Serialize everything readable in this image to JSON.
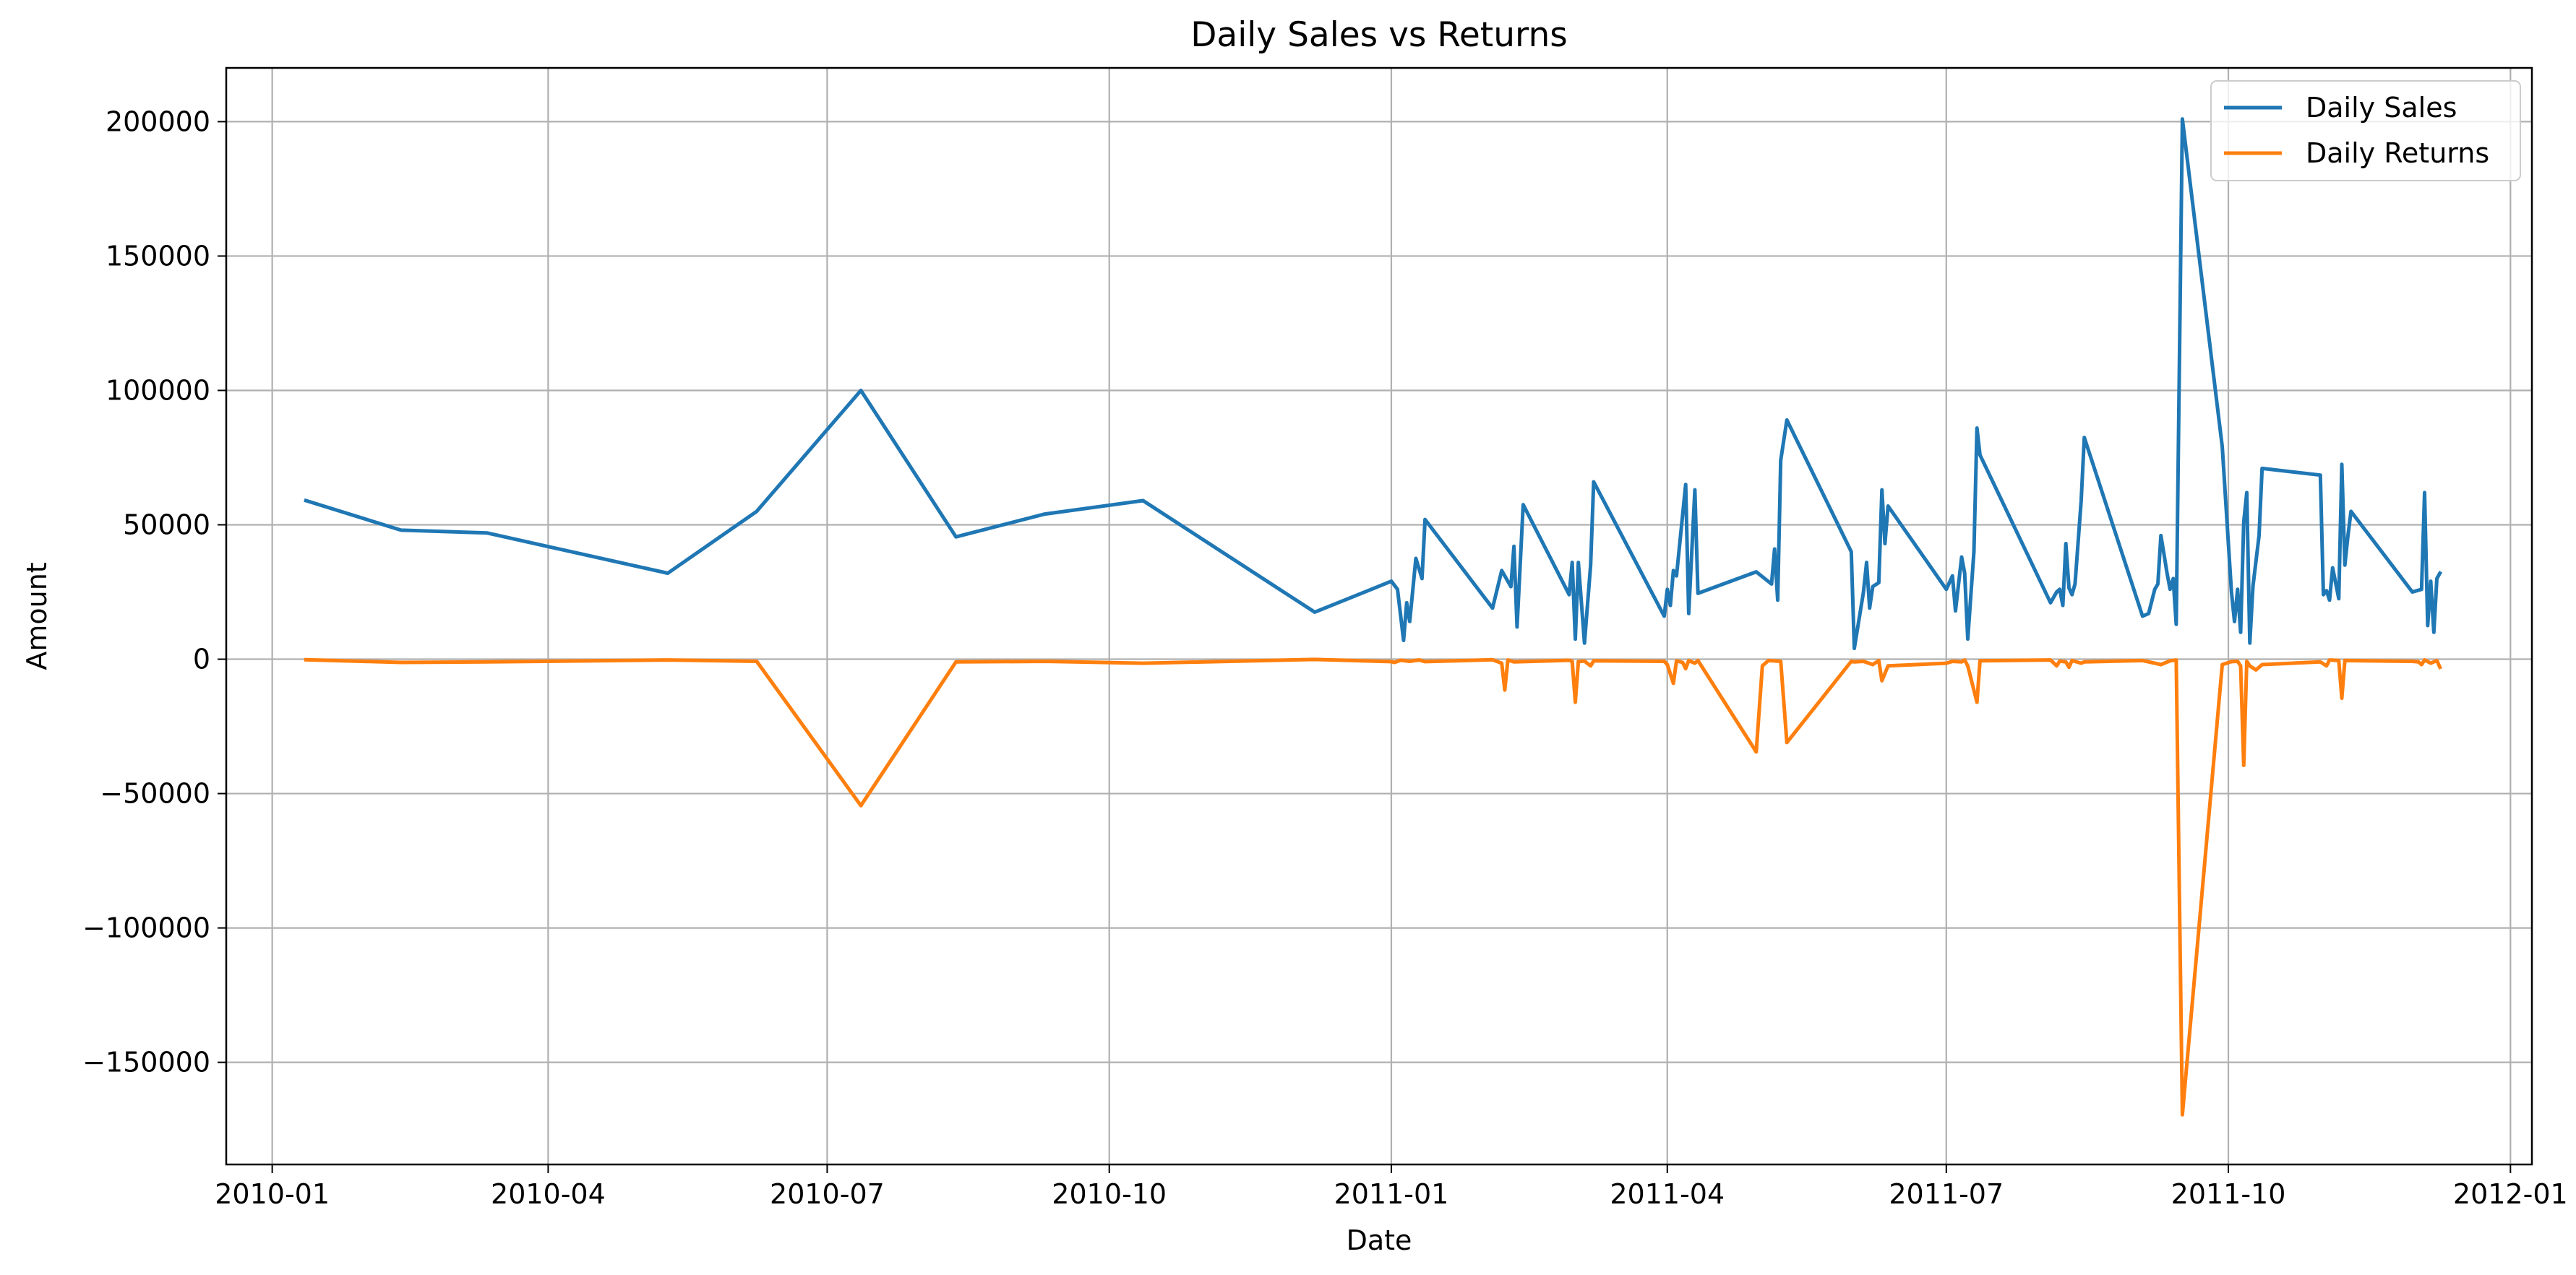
{
  "chart_data": {
    "type": "line",
    "title": "Daily Sales vs Returns",
    "xlabel": "Date",
    "ylabel": "Amount",
    "x_axis": "date",
    "xlim": [
      "2009-12-17",
      "2012-01-08"
    ],
    "ylim": [
      -188000,
      220000
    ],
    "xticks": [
      {
        "date": "2010-01-01",
        "label": "2010-01"
      },
      {
        "date": "2010-04-01",
        "label": "2010-04"
      },
      {
        "date": "2010-07-01",
        "label": "2010-07"
      },
      {
        "date": "2010-10-01",
        "label": "2010-10"
      },
      {
        "date": "2011-01-01",
        "label": "2011-01"
      },
      {
        "date": "2011-04-01",
        "label": "2011-04"
      },
      {
        "date": "2011-07-01",
        "label": "2011-07"
      },
      {
        "date": "2011-10-01",
        "label": "2011-10"
      },
      {
        "date": "2012-01-01",
        "label": "2012-01"
      }
    ],
    "yticks": [
      {
        "value": 200000,
        "label": "200000"
      },
      {
        "value": 150000,
        "label": "150000"
      },
      {
        "value": 100000,
        "label": "100000"
      },
      {
        "value": 50000,
        "label": "50000"
      },
      {
        "value": 0,
        "label": "0"
      },
      {
        "value": -50000,
        "label": "−50000"
      },
      {
        "value": -100000,
        "label": "−100000"
      },
      {
        "value": -150000,
        "label": "−150000"
      }
    ],
    "grid": true,
    "legend_position": "top-right",
    "series": [
      {
        "name": "Daily Sales",
        "color": "#1f77b4",
        "points": [
          [
            "2010-01-12",
            59000
          ],
          [
            "2010-02-12",
            48000
          ],
          [
            "2010-03-12",
            47000
          ],
          [
            "2010-05-10",
            32000
          ],
          [
            "2010-06-08",
            55000
          ],
          [
            "2010-07-12",
            100000
          ],
          [
            "2010-08-12",
            45500
          ],
          [
            "2010-09-10",
            54000
          ],
          [
            "2010-10-12",
            59000
          ],
          [
            "2010-12-07",
            17500
          ],
          [
            "2011-01-01",
            29000
          ],
          [
            "2011-01-03",
            26000
          ],
          [
            "2011-01-05",
            7000
          ],
          [
            "2011-01-06",
            21000
          ],
          [
            "2011-01-07",
            14000
          ],
          [
            "2011-01-09",
            37500
          ],
          [
            "2011-01-11",
            30000
          ],
          [
            "2011-01-12",
            52000
          ],
          [
            "2011-02-03",
            19000
          ],
          [
            "2011-02-06",
            33000
          ],
          [
            "2011-02-09",
            27000
          ],
          [
            "2011-02-10",
            42000
          ],
          [
            "2011-02-11",
            12000
          ],
          [
            "2011-02-13",
            57500
          ],
          [
            "2011-02-28",
            24000
          ],
          [
            "2011-03-01",
            36000
          ],
          [
            "2011-03-02",
            7500
          ],
          [
            "2011-03-03",
            36000
          ],
          [
            "2011-03-05",
            6000
          ],
          [
            "2011-03-07",
            35000
          ],
          [
            "2011-03-08",
            66000
          ],
          [
            "2011-03-31",
            16000
          ],
          [
            "2011-04-01",
            26000
          ],
          [
            "2011-04-02",
            20000
          ],
          [
            "2011-04-03",
            33000
          ],
          [
            "2011-04-04",
            31000
          ],
          [
            "2011-04-07",
            65000
          ],
          [
            "2011-04-08",
            17000
          ],
          [
            "2011-04-10",
            63000
          ],
          [
            "2011-04-11",
            24500
          ],
          [
            "2011-04-30",
            32500
          ],
          [
            "2011-05-05",
            28000
          ],
          [
            "2011-05-06",
            41000
          ],
          [
            "2011-05-07",
            22000
          ],
          [
            "2011-05-08",
            74000
          ],
          [
            "2011-05-10",
            89000
          ],
          [
            "2011-05-31",
            40000
          ],
          [
            "2011-06-01",
            4000
          ],
          [
            "2011-06-04",
            25000
          ],
          [
            "2011-06-05",
            36000
          ],
          [
            "2011-06-06",
            19000
          ],
          [
            "2011-06-07",
            27000
          ],
          [
            "2011-06-09",
            28500
          ],
          [
            "2011-06-10",
            63000
          ],
          [
            "2011-06-11",
            43000
          ],
          [
            "2011-06-12",
            57000
          ],
          [
            "2011-07-01",
            26000
          ],
          [
            "2011-07-03",
            31000
          ],
          [
            "2011-07-04",
            18000
          ],
          [
            "2011-07-06",
            38000
          ],
          [
            "2011-07-07",
            32000
          ],
          [
            "2011-07-08",
            7500
          ],
          [
            "2011-07-10",
            40000
          ],
          [
            "2011-07-11",
            86000
          ],
          [
            "2011-07-12",
            76000
          ],
          [
            "2011-08-04",
            21000
          ],
          [
            "2011-08-06",
            25000
          ],
          [
            "2011-08-07",
            26000
          ],
          [
            "2011-08-08",
            20000
          ],
          [
            "2011-08-09",
            43000
          ],
          [
            "2011-08-10",
            26500
          ],
          [
            "2011-08-11",
            24000
          ],
          [
            "2011-08-12",
            28000
          ],
          [
            "2011-08-14",
            59000
          ],
          [
            "2011-08-15",
            82500
          ],
          [
            "2011-09-03",
            16000
          ],
          [
            "2011-09-05",
            17000
          ],
          [
            "2011-09-07",
            26000
          ],
          [
            "2011-09-08",
            28000
          ],
          [
            "2011-09-09",
            46000
          ],
          [
            "2011-09-10",
            39000
          ],
          [
            "2011-09-11",
            32000
          ],
          [
            "2011-09-12",
            26000
          ],
          [
            "2011-09-13",
            30000
          ],
          [
            "2011-09-14",
            13000
          ],
          [
            "2011-09-16",
            201000
          ],
          [
            "2011-09-29",
            79000
          ],
          [
            "2011-10-02",
            25000
          ],
          [
            "2011-10-03",
            14000
          ],
          [
            "2011-10-04",
            26000
          ],
          [
            "2011-10-05",
            10000
          ],
          [
            "2011-10-06",
            51000
          ],
          [
            "2011-10-07",
            62000
          ],
          [
            "2011-10-08",
            6000
          ],
          [
            "2011-10-09",
            27000
          ],
          [
            "2011-10-11",
            46000
          ],
          [
            "2011-10-12",
            71000
          ],
          [
            "2011-10-31",
            68500
          ],
          [
            "2011-11-01",
            24000
          ],
          [
            "2011-11-02",
            25500
          ],
          [
            "2011-11-03",
            22000
          ],
          [
            "2011-11-04",
            34000
          ],
          [
            "2011-11-06",
            22500
          ],
          [
            "2011-11-07",
            72500
          ],
          [
            "2011-11-08",
            35000
          ],
          [
            "2011-11-09",
            46000
          ],
          [
            "2011-11-10",
            55000
          ],
          [
            "2011-11-30",
            25000
          ],
          [
            "2011-12-03",
            26000
          ],
          [
            "2011-12-04",
            62000
          ],
          [
            "2011-12-05",
            12500
          ],
          [
            "2011-12-06",
            29000
          ],
          [
            "2011-12-07",
            10000
          ],
          [
            "2011-12-08",
            30000
          ],
          [
            "2011-12-09",
            32000
          ]
        ]
      },
      {
        "name": "Daily Returns",
        "color": "#ff7f0e",
        "points": [
          [
            "2010-01-12",
            -200
          ],
          [
            "2010-02-12",
            -1200
          ],
          [
            "2010-03-12",
            -1000
          ],
          [
            "2010-05-10",
            -300
          ],
          [
            "2010-06-08",
            -800
          ],
          [
            "2010-07-12",
            -54500
          ],
          [
            "2010-08-12",
            -1000
          ],
          [
            "2010-09-10",
            -800
          ],
          [
            "2010-10-12",
            -1500
          ],
          [
            "2010-12-07",
            -100
          ],
          [
            "2011-01-01",
            -900
          ],
          [
            "2011-01-02",
            -1200
          ],
          [
            "2011-01-04",
            -400
          ],
          [
            "2011-01-07",
            -800
          ],
          [
            "2011-01-10",
            -300
          ],
          [
            "2011-01-12",
            -900
          ],
          [
            "2011-02-03",
            -200
          ],
          [
            "2011-02-06",
            -1500
          ],
          [
            "2011-02-07",
            -11500
          ],
          [
            "2011-02-08",
            -300
          ],
          [
            "2011-02-10",
            -1000
          ],
          [
            "2011-02-28",
            -400
          ],
          [
            "2011-03-01",
            -800
          ],
          [
            "2011-03-02",
            -16000
          ],
          [
            "2011-03-03",
            -900
          ],
          [
            "2011-03-05",
            -700
          ],
          [
            "2011-03-07",
            -2500
          ],
          [
            "2011-03-08",
            -600
          ],
          [
            "2011-03-31",
            -800
          ],
          [
            "2011-04-01",
            -2000
          ],
          [
            "2011-04-03",
            -9000
          ],
          [
            "2011-04-04",
            -600
          ],
          [
            "2011-04-06",
            -1200
          ],
          [
            "2011-04-07",
            -3500
          ],
          [
            "2011-04-08",
            -500
          ],
          [
            "2011-04-10",
            -1500
          ],
          [
            "2011-04-11",
            -500
          ],
          [
            "2011-04-30",
            -34500
          ],
          [
            "2011-05-02",
            -2500
          ],
          [
            "2011-05-04",
            -500
          ],
          [
            "2011-05-08",
            -800
          ],
          [
            "2011-05-10",
            -31000
          ],
          [
            "2011-05-31",
            -800
          ],
          [
            "2011-06-01",
            -1000
          ],
          [
            "2011-06-04",
            -800
          ],
          [
            "2011-06-07",
            -2000
          ],
          [
            "2011-06-09",
            -500
          ],
          [
            "2011-06-10",
            -8000
          ],
          [
            "2011-06-12",
            -2500
          ],
          [
            "2011-07-01",
            -1500
          ],
          [
            "2011-07-03",
            -800
          ],
          [
            "2011-07-06",
            -1000
          ],
          [
            "2011-07-07",
            -300
          ],
          [
            "2011-07-08",
            -2500
          ],
          [
            "2011-07-11",
            -16000
          ],
          [
            "2011-07-12",
            -600
          ],
          [
            "2011-08-04",
            -300
          ],
          [
            "2011-08-06",
            -2500
          ],
          [
            "2011-08-07",
            -700
          ],
          [
            "2011-08-09",
            -1000
          ],
          [
            "2011-08-10",
            -3000
          ],
          [
            "2011-08-11",
            -500
          ],
          [
            "2011-08-14",
            -1500
          ],
          [
            "2011-08-15",
            -1000
          ],
          [
            "2011-09-03",
            -500
          ],
          [
            "2011-09-07",
            -1500
          ],
          [
            "2011-09-09",
            -2000
          ],
          [
            "2011-09-12",
            -600
          ],
          [
            "2011-09-14",
            -300
          ],
          [
            "2011-09-16",
            -169500
          ],
          [
            "2011-09-29",
            -2000
          ],
          [
            "2011-10-02",
            -900
          ],
          [
            "2011-10-04",
            -800
          ],
          [
            "2011-10-05",
            -2500
          ],
          [
            "2011-10-06",
            -39500
          ],
          [
            "2011-10-07",
            -800
          ],
          [
            "2011-10-08",
            -2500
          ],
          [
            "2011-10-10",
            -4000
          ],
          [
            "2011-10-12",
            -2000
          ],
          [
            "2011-10-31",
            -1000
          ],
          [
            "2011-11-02",
            -2500
          ],
          [
            "2011-11-03",
            -300
          ],
          [
            "2011-11-06",
            -500
          ],
          [
            "2011-11-07",
            -14500
          ],
          [
            "2011-11-08",
            -500
          ],
          [
            "2011-11-30",
            -800
          ],
          [
            "2011-12-02",
            -1000
          ],
          [
            "2011-12-03",
            -2000
          ],
          [
            "2011-12-04",
            -300
          ],
          [
            "2011-12-06",
            -1500
          ],
          [
            "2011-12-08",
            -500
          ],
          [
            "2011-12-09",
            -3000
          ]
        ]
      }
    ]
  }
}
